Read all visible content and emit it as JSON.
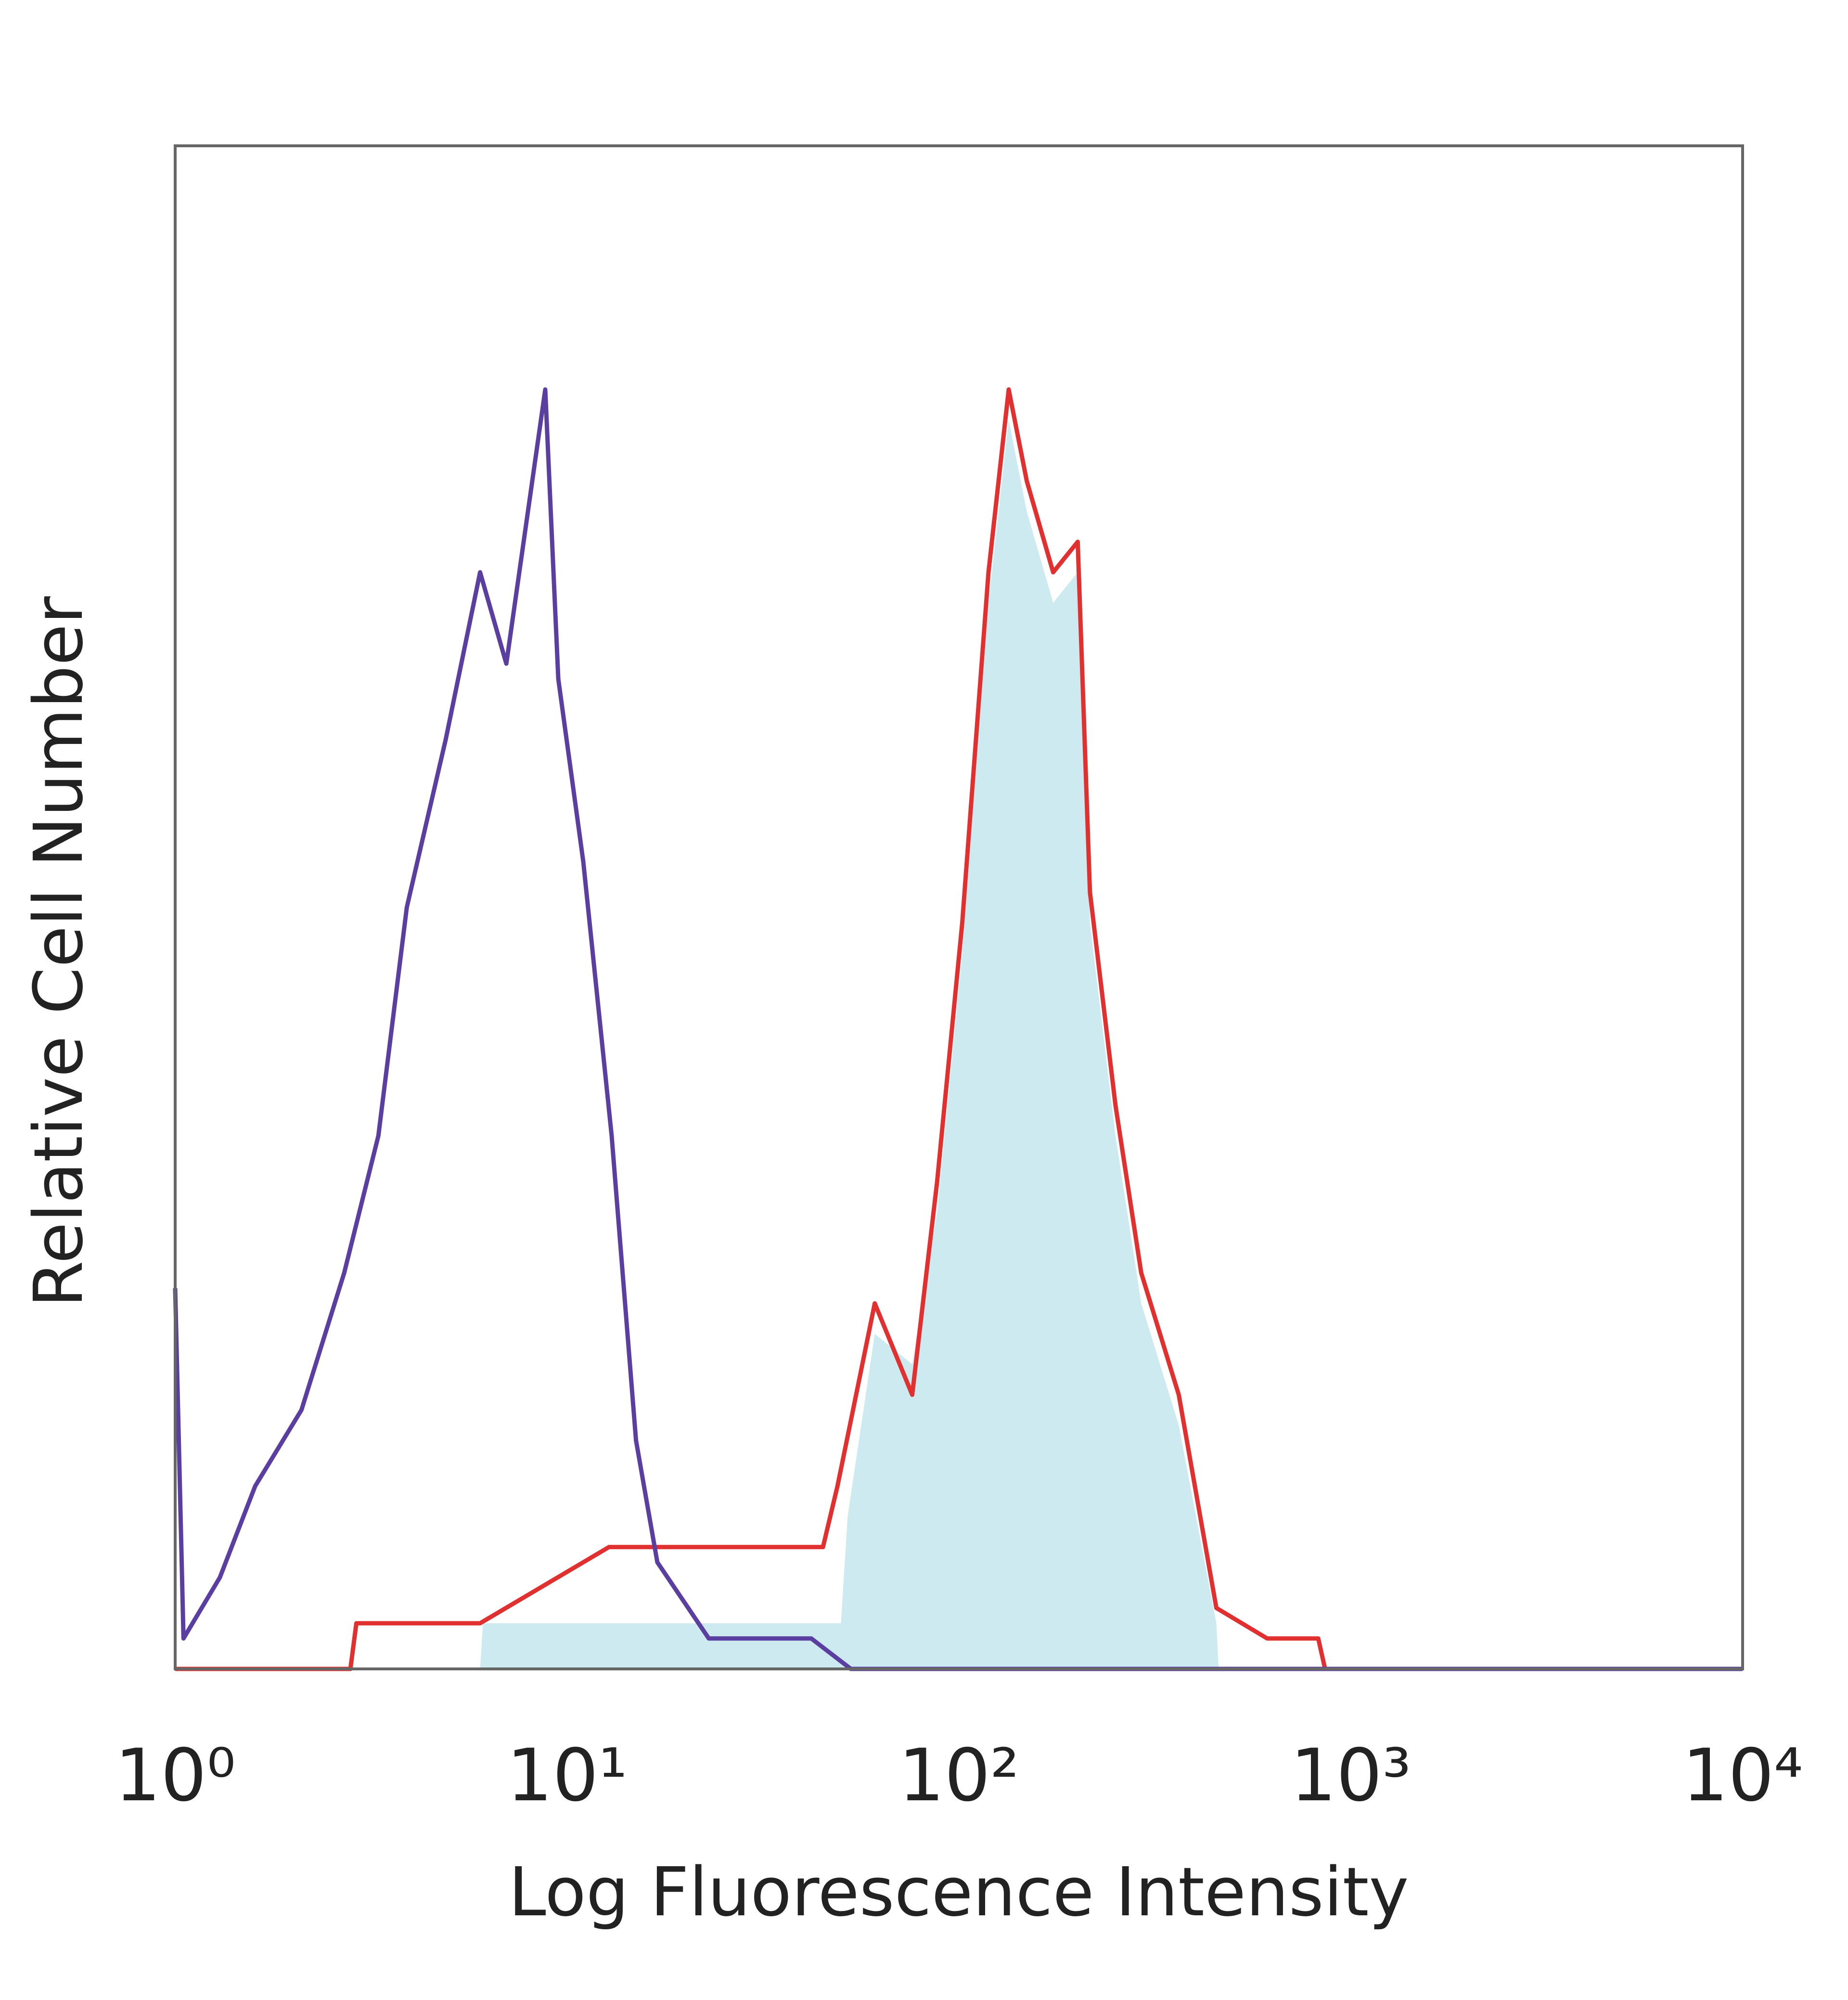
{
  "chart_data": {
    "type": "histogram-overlay",
    "x_label": "Log Fluorescence Intensity",
    "y_label": "Relative Cell Number",
    "xscale": "log",
    "xlim": [
      1,
      10000
    ],
    "ylim": [
      0,
      100
    ],
    "xticks": [
      {
        "value": 1,
        "label": "10⁰"
      },
      {
        "value": 10,
        "label": "10¹"
      },
      {
        "value": 100,
        "label": "10²"
      },
      {
        "value": 1000,
        "label": "10³"
      },
      {
        "value": 10000,
        "label": "10⁴"
      }
    ],
    "series": [
      {
        "color": "#cdeaf0",
        "fill": true,
        "x": [
          1,
          6,
          6.1,
          50,
          52,
          61,
          76,
          88,
          102,
          119,
          134,
          149,
          174,
          201,
          216,
          251,
          292,
          364,
          454,
          460,
          10000
        ],
        "values": [
          0,
          0,
          3,
          3,
          10,
          22,
          20,
          30,
          47,
          70,
          82,
          76,
          70,
          72,
          49,
          35,
          24,
          16,
          3,
          0,
          0
        ]
      },
      {
        "color": "#e03030",
        "fill": false,
        "x": [
          1,
          2.8,
          2.9,
          6,
          12.8,
          20,
          45,
          49,
          61,
          76,
          88,
          102,
          119,
          134,
          149,
          174,
          201,
          216,
          251,
          292,
          364,
          454,
          612,
          826,
          860,
          10000
        ],
        "values": [
          0,
          0,
          3,
          3,
          8,
          8,
          8,
          12,
          24,
          18,
          32,
          49,
          72,
          84,
          78,
          72,
          74,
          51,
          37,
          26,
          18,
          4,
          2,
          2,
          0,
          0
        ]
      },
      {
        "color": "#5b3fa0",
        "fill": false,
        "x": [
          1,
          1.05,
          1.3,
          1.6,
          2.1,
          2.7,
          3.3,
          3.9,
          4.9,
          6,
          7,
          8.8,
          9.5,
          11,
          13,
          15,
          17,
          23,
          42,
          53,
          10000
        ],
        "values": [
          25,
          2,
          6,
          12,
          17,
          26,
          35,
          50,
          61,
          72,
          66,
          84,
          65,
          53,
          35,
          15,
          7,
          2,
          2,
          0,
          0
        ]
      }
    ]
  }
}
